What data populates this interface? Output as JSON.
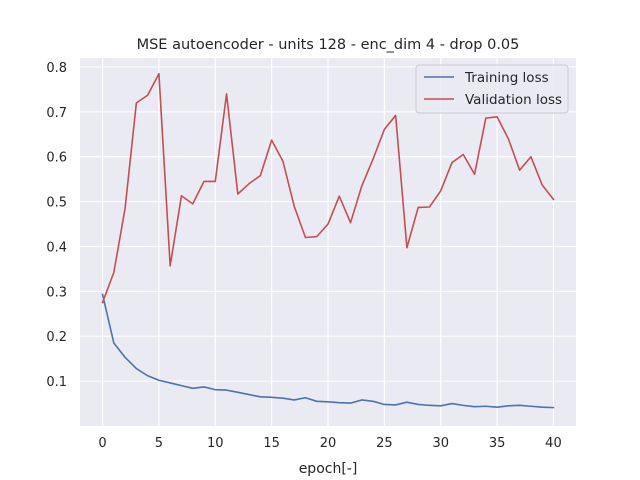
{
  "chart_data": {
    "type": "line",
    "title": "MSE autoencoder - units 128 - enc_dim 4 - drop 0.05",
    "xlabel": "epoch[-]",
    "ylabel": "",
    "xlim": [
      -2,
      42
    ],
    "ylim": [
      0.0,
      0.82
    ],
    "xticks": [
      0,
      5,
      10,
      15,
      20,
      25,
      30,
      35,
      40
    ],
    "yticks": [
      0.1,
      0.2,
      0.3,
      0.4,
      0.5,
      0.6,
      0.7,
      0.8
    ],
    "grid": true,
    "legend_position": "top-right",
    "x": [
      0,
      1,
      2,
      3,
      4,
      5,
      6,
      7,
      8,
      9,
      10,
      11,
      12,
      13,
      14,
      15,
      16,
      17,
      18,
      19,
      20,
      21,
      22,
      23,
      24,
      25,
      26,
      27,
      28,
      29,
      30,
      31,
      32,
      33,
      34,
      35,
      36,
      37,
      38,
      39,
      40
    ],
    "series": [
      {
        "name": "Training loss",
        "color": "#4c72b0",
        "values": [
          0.293,
          0.185,
          0.153,
          0.128,
          0.112,
          0.102,
          0.096,
          0.09,
          0.084,
          0.087,
          0.081,
          0.08,
          0.075,
          0.07,
          0.065,
          0.064,
          0.062,
          0.058,
          0.063,
          0.055,
          0.054,
          0.052,
          0.051,
          0.058,
          0.055,
          0.048,
          0.047,
          0.053,
          0.048,
          0.046,
          0.045,
          0.05,
          0.046,
          0.043,
          0.044,
          0.042,
          0.045,
          0.046,
          0.044,
          0.042,
          0.041
        ]
      },
      {
        "name": "Validation loss",
        "color": "#c44e52",
        "values": [
          0.275,
          0.342,
          0.485,
          0.72,
          0.737,
          0.785,
          0.357,
          0.513,
          0.495,
          0.545,
          0.545,
          0.74,
          0.517,
          0.54,
          0.558,
          0.637,
          0.59,
          0.49,
          0.42,
          0.422,
          0.45,
          0.512,
          0.453,
          0.535,
          0.595,
          0.661,
          0.692,
          0.397,
          0.487,
          0.488,
          0.524,
          0.587,
          0.605,
          0.561,
          0.686,
          0.689,
          0.64,
          0.57,
          0.6,
          0.537,
          0.505
        ]
      }
    ]
  }
}
